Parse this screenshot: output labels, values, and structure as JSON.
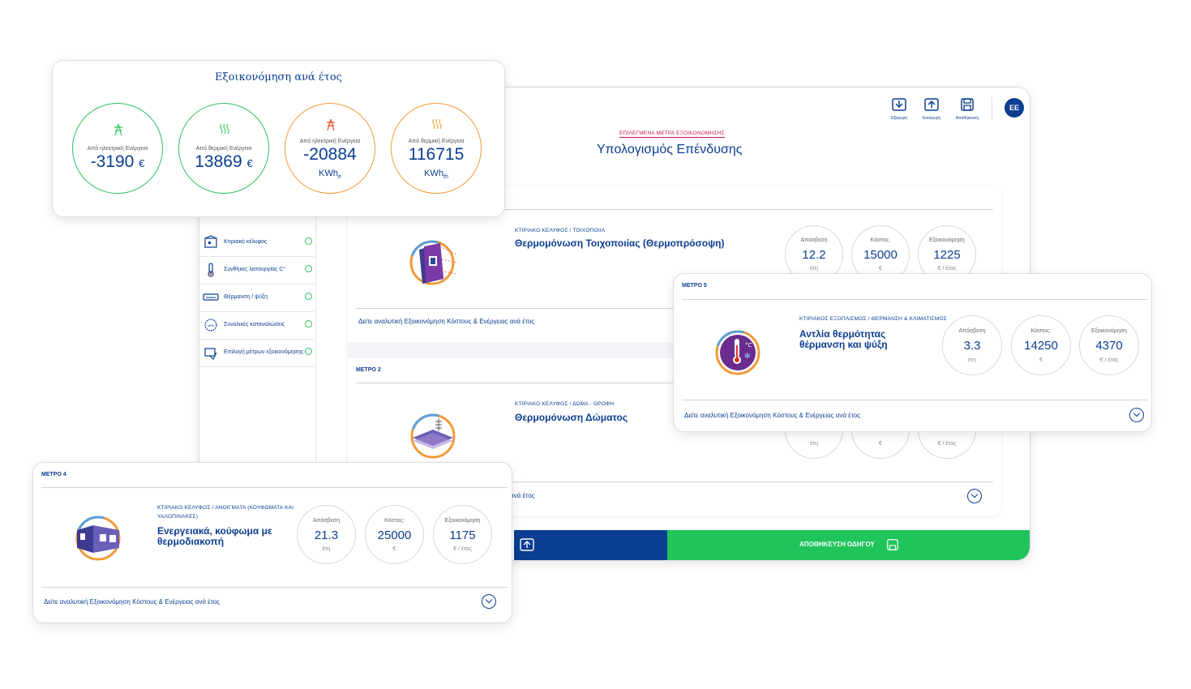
{
  "top_actions": [
    {
      "label": "Εξαγωγή",
      "icon": "download-icon"
    },
    {
      "label": "Εισαγωγή",
      "icon": "upload-icon"
    },
    {
      "label": "Αποθήκευση",
      "icon": "save-icon"
    }
  ],
  "avatar": "EE",
  "header": {
    "subtitle": "ΕΠΙΛΕΓΜΕΝΑ ΜΕΤΡΑ ΕΞΟΙΚΟΝΟΜΗΣΗΣ",
    "title": "Υπολογισμός Επένδυσης"
  },
  "sidebar": {
    "items": [
      {
        "label": "Κτιριακό κέλυφος",
        "icon": "building-icon"
      },
      {
        "label": "Συνθήκες λειτουργίας C°",
        "icon": "thermometer-icon"
      },
      {
        "label": "Θέρμανση / ψύξη",
        "icon": "air-conditioner-icon"
      },
      {
        "label": "Συνολικές καταναλώσεις",
        "icon": "kwh-meter-icon"
      },
      {
        "label": "Επιλογή μέτρων εξοικονόμησης",
        "icon": "measures-icon"
      }
    ]
  },
  "savings_card": {
    "title": "Εξοικονόμηση ανά έτος",
    "items": [
      {
        "label": "Από ηλεκτρική Ενέργεια",
        "value": "-3190",
        "unit": "€",
        "color": "#2ec25f",
        "icon": "power-tower-icon"
      },
      {
        "label": "Από θερμική Ενέργεια",
        "value": "13869",
        "unit": "€",
        "color": "#2ec25f",
        "icon": "heat-waves-icon"
      },
      {
        "label": "Από ηλεκτρική Ενέργεια",
        "value": "-20884",
        "unit": "KWh",
        "unit_sub": "e",
        "color": "#f29a38",
        "icon": "power-tower-icon"
      },
      {
        "label": "Από θερμική Ενέργεια",
        "value": "116715",
        "unit": "KWh",
        "unit_sub": "th",
        "color": "#f29a38",
        "icon": "heat-waves-icon"
      }
    ]
  },
  "stat_labels": {
    "payback": "Απόσβεση",
    "cost": "Κόστος:",
    "savings": "Εξοικονόμηση"
  },
  "stat_units": {
    "payback": "έτη",
    "cost": "€",
    "savings": "€ / έτος"
  },
  "detail_link": "Δείτε αναλυτική Εξοικονόμηση Κόστους & Ενέργειας ανά έτος",
  "measure_1": {
    "breadcrumb": "ΚΤΙΡΙΑΚΟ ΚΕΛΥΦΟΣ / ΤΟΙΧΟΠΟΙΙΑ",
    "title": "Θερμομόνωση Τοιχοποιίας (Θερμοπρόσοψη)",
    "payback": "12.2",
    "cost": "15000",
    "savings": "1225"
  },
  "measure_2": {
    "label": "ΜΕΤΡΟ 2",
    "breadcrumb": "ΚΤΙΡΙΑΚΟ ΚΕΛΥΦΟΣ / ΔΩΜΑ - ΟΡΟΦΗ",
    "title": "Θερμομόνωση Δώματος",
    "link_partial": "ανά έτος"
  },
  "measure_4": {
    "label": "ΜΕΤΡΟ 4",
    "breadcrumb_1": "ΚΤΙΡΙΑΚΟ ΚΕΛΥΦΟΣ / ΑΝΟΙΓΜΑΤΑ (ΚΟΥΦΩΜΑΤΑ ΚΑΙ",
    "breadcrumb_2": "ΥΑΛΟΠΙΝΑΚΕΣ)",
    "title_1": "Ενεργειακά, κούφωμα με",
    "title_2": "θερμοδιακοπή",
    "payback": "21.3",
    "cost": "25000",
    "savings": "1175"
  },
  "measure_5": {
    "label": "ΜΕΤΡΟ 5",
    "breadcrumb": "ΚΤΙΡΙΑΚΟΣ ΕΞΟΠΛΙΣΜΟΣ / ΘΕΡΜΑΝΣΗ & ΚΛΙΜΑΤΙΣΜΟΣ",
    "title_1": "Αντλία θερμότητας",
    "title_2": "θέρμανση και ψύξη",
    "payback": "3.3",
    "cost": "14250",
    "savings": "4370"
  },
  "save_guide_button": "ΑΠΟΘΗΚΕΥΣΗ ΟΔΗΓΟΥ",
  "colors": {
    "primary": "#0b3d91",
    "green": "#2ec25f",
    "orange": "#f29a38",
    "accent": "#c2185b"
  }
}
